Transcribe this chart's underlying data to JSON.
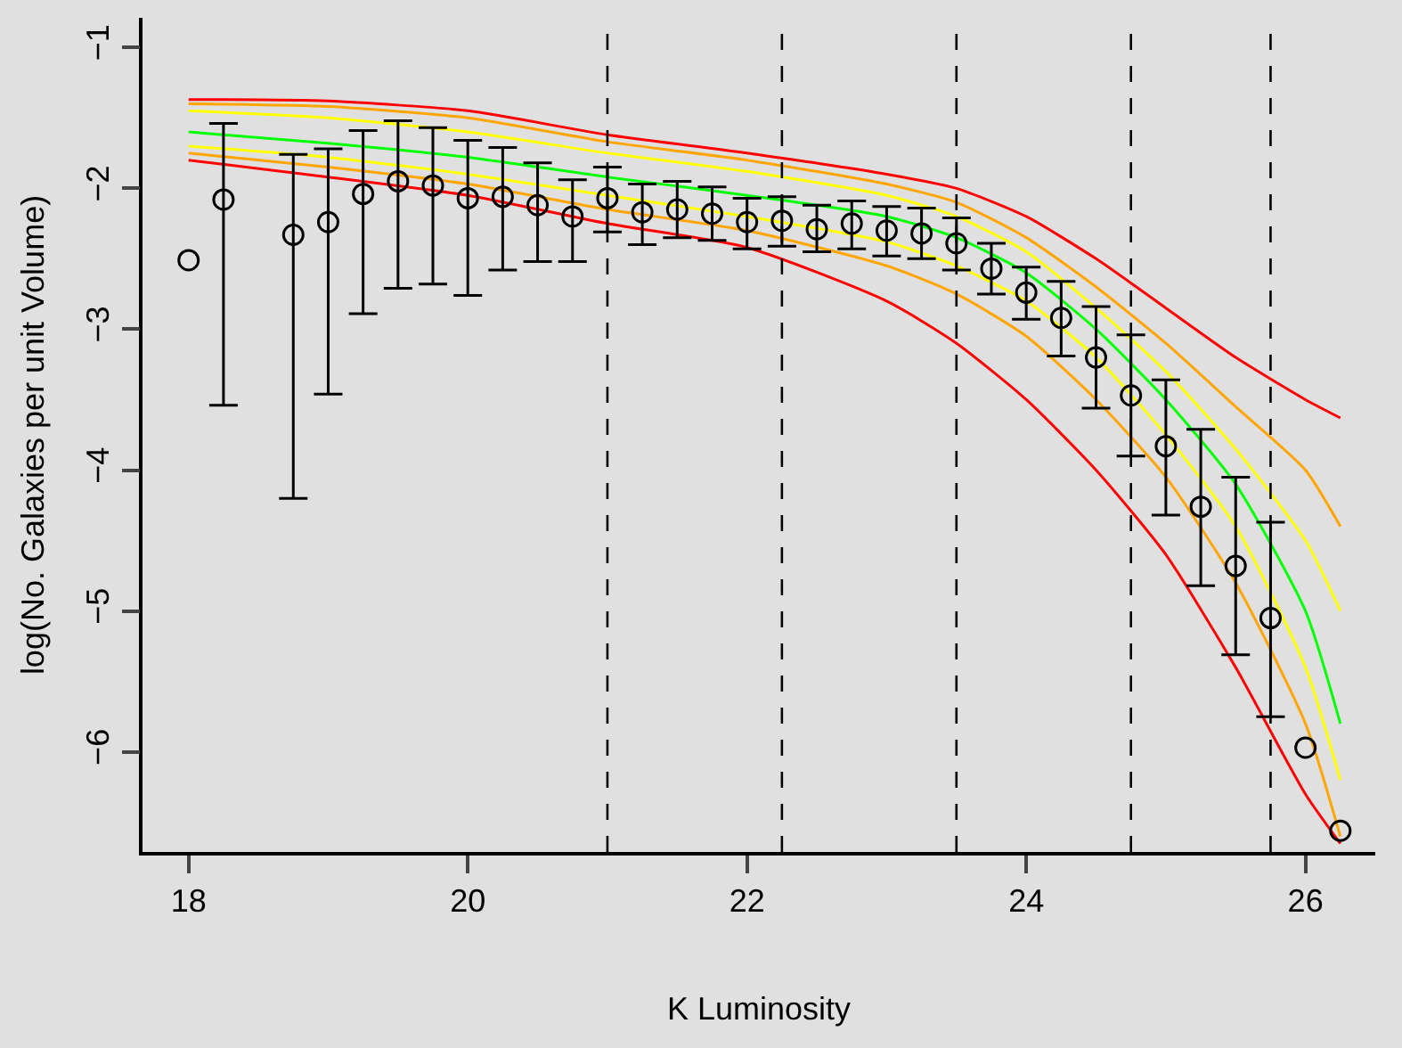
{
  "chart_data": {
    "type": "line",
    "xlabel": "K Luminosity",
    "ylabel": "log(No. Galaxies per unit Volume)",
    "xlim": [
      17.67,
      26.5
    ],
    "ylim": [
      -6.71,
      -0.79
    ],
    "xticks": [
      18,
      20,
      22,
      24,
      26
    ],
    "yticks": [
      {
        "value": -6,
        "label": "−6"
      },
      {
        "value": -5,
        "label": "−5"
      },
      {
        "value": -4,
        "label": "−4"
      },
      {
        "value": -3,
        "label": "−3"
      },
      {
        "value": -2,
        "label": "−2"
      },
      {
        "value": -1,
        "label": "−1"
      }
    ],
    "grid": false,
    "line_style": "solid",
    "ref_lines": [
      {
        "axis": "x",
        "value": 21,
        "label": null,
        "color": "#000000",
        "line_style": "dashed"
      },
      {
        "axis": "x",
        "value": 22.25,
        "label": null,
        "color": "#000000",
        "line_style": "dashed"
      },
      {
        "axis": "x",
        "value": 23.5,
        "label": null,
        "color": "#000000",
        "line_style": "dashed"
      },
      {
        "axis": "x",
        "value": 24.75,
        "label": null,
        "color": "#000000",
        "line_style": "dashed"
      },
      {
        "axis": "x",
        "value": 25.75,
        "label": null,
        "color": "#000000",
        "line_style": "dashed"
      }
    ],
    "series": [
      {
        "color": "#ff0000",
        "x": [
          18,
          19,
          20,
          21,
          22,
          23,
          23.5,
          24,
          24.5,
          25,
          25.5,
          26,
          26.25
        ],
        "values": [
          -1.37,
          -1.38,
          -1.45,
          -1.62,
          -1.75,
          -1.9,
          -2.0,
          -2.2,
          -2.5,
          -2.85,
          -3.2,
          -3.5,
          -3.63
        ]
      },
      {
        "color": "#ffa500",
        "x": [
          18,
          19,
          20,
          21,
          22,
          23,
          23.5,
          24,
          24.5,
          25,
          25.5,
          26,
          26.25
        ],
        "values": [
          -1.4,
          -1.42,
          -1.5,
          -1.67,
          -1.8,
          -1.97,
          -2.1,
          -2.35,
          -2.7,
          -3.1,
          -3.55,
          -4.0,
          -4.4
        ]
      },
      {
        "color": "#ffff00",
        "x": [
          18,
          19,
          20,
          21,
          22,
          23,
          23.5,
          24,
          24.5,
          25,
          25.5,
          26,
          26.25
        ],
        "values": [
          -1.45,
          -1.5,
          -1.6,
          -1.75,
          -1.88,
          -2.05,
          -2.2,
          -2.45,
          -2.85,
          -3.3,
          -3.85,
          -4.5,
          -5.0
        ]
      },
      {
        "color": "#ff0000",
        "x": [
          18,
          19,
          20,
          21,
          22,
          23,
          23.5,
          24,
          24.5,
          25,
          25.5,
          26,
          26.25
        ],
        "values": [
          -1.8,
          -1.92,
          -2.05,
          -2.25,
          -2.42,
          -2.8,
          -3.1,
          -3.5,
          -4.0,
          -4.6,
          -5.4,
          -6.3,
          -6.65
        ]
      },
      {
        "color": "#ffa500",
        "x": [
          18,
          19,
          20,
          21,
          22,
          23,
          23.5,
          24,
          24.5,
          25,
          25.5,
          26,
          26.25
        ],
        "values": [
          -1.75,
          -1.85,
          -1.97,
          -2.15,
          -2.3,
          -2.55,
          -2.75,
          -3.05,
          -3.5,
          -4.05,
          -4.8,
          -5.8,
          -6.6
        ]
      },
      {
        "color": "#ffff00",
        "x": [
          18,
          19,
          20,
          21,
          22,
          23,
          23.5,
          24,
          24.5,
          25,
          25.5,
          26,
          26.25
        ],
        "values": [
          -1.7,
          -1.78,
          -1.9,
          -2.05,
          -2.2,
          -2.38,
          -2.55,
          -2.8,
          -3.2,
          -3.75,
          -4.4,
          -5.4,
          -6.2
        ]
      },
      {
        "color": "#00ff00",
        "x": [
          18,
          19,
          20,
          21,
          22,
          23,
          23.5,
          24,
          24.5,
          25,
          25.5,
          26,
          26.25
        ],
        "values": [
          -1.6,
          -1.68,
          -1.78,
          -1.92,
          -2.05,
          -2.2,
          -2.35,
          -2.6,
          -3.0,
          -3.5,
          -4.1,
          -5.0,
          -5.8
        ]
      },
      {
        "type": "scatter",
        "color": "#000000",
        "marker": "circle",
        "x": [
          18,
          18.25,
          18.75,
          19,
          19.25,
          19.5,
          19.75,
          20,
          20.25,
          20.5,
          20.75,
          21,
          21.25,
          21.5,
          21.75,
          22,
          22.25,
          22.5,
          22.75,
          23,
          23.25,
          23.5,
          23.75,
          24,
          24.25,
          24.5,
          24.75,
          25,
          25.25,
          25.5,
          25.75,
          26,
          26.25
        ],
        "values": [
          -2.51,
          -2.08,
          -2.33,
          -2.24,
          -2.04,
          -1.95,
          -1.98,
          -2.07,
          -2.06,
          -2.12,
          -2.2,
          -2.07,
          -2.17,
          -2.15,
          -2.18,
          -2.24,
          -2.23,
          -2.29,
          -2.25,
          -2.3,
          -2.32,
          -2.39,
          -2.57,
          -2.74,
          -2.92,
          -3.2,
          -3.47,
          -3.83,
          -4.26,
          -4.68,
          -5.05,
          -5.97,
          -6.56
        ],
        "errors": [
          null,
          [
            -3.54,
            -1.54
          ],
          [
            -4.2,
            -1.76
          ],
          [
            -3.46,
            -1.72
          ],
          [
            -2.89,
            -1.59
          ],
          [
            -2.71,
            -1.52
          ],
          [
            -2.68,
            -1.57
          ],
          [
            -2.76,
            -1.66
          ],
          [
            -2.58,
            -1.71
          ],
          [
            -2.52,
            -1.82
          ],
          [
            -2.52,
            -1.94
          ],
          [
            -2.31,
            -1.85
          ],
          [
            -2.4,
            -1.97
          ],
          [
            -2.35,
            -1.95
          ],
          [
            -2.37,
            -1.99
          ],
          [
            -2.43,
            -2.07
          ],
          [
            -2.41,
            -2.06
          ],
          [
            -2.45,
            -2.12
          ],
          [
            -2.43,
            -2.09
          ],
          [
            -2.48,
            -2.13
          ],
          [
            -2.5,
            -2.14
          ],
          [
            -2.58,
            -2.21
          ],
          [
            -2.75,
            -2.39
          ],
          [
            -2.93,
            -2.56
          ],
          [
            -3.19,
            -2.66
          ],
          [
            -3.56,
            -2.84
          ],
          [
            -3.9,
            -3.04
          ],
          [
            -4.32,
            -3.36
          ],
          [
            -4.82,
            -3.71
          ],
          [
            -5.31,
            -4.05
          ],
          [
            -5.75,
            -4.37
          ],
          null,
          null
        ]
      }
    ]
  }
}
